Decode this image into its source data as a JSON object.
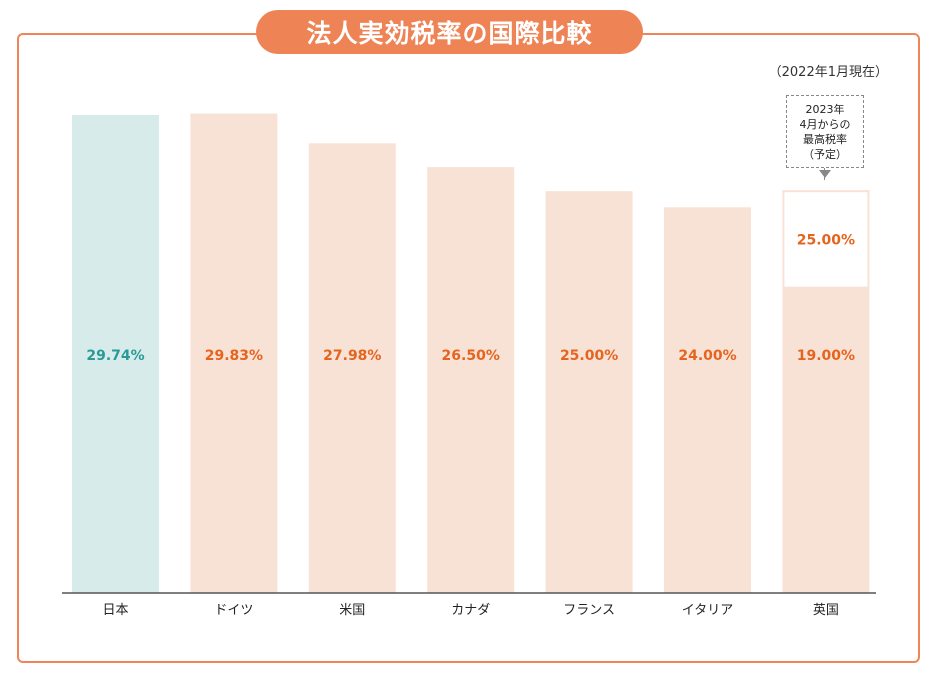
{
  "title": "法人実効税率の国際比較",
  "as_of": "（2022年1月現在）",
  "colors": {
    "accent": "#ee8456",
    "frame": "#f0855a",
    "japan_bar": "#d7ecea",
    "other_bar": "#f8e2d6",
    "japan_label": "#2a9a98",
    "other_label": "#e5641e",
    "axis": "#555555"
  },
  "note": {
    "lines": [
      "2023年",
      "4月からの",
      "最高税率",
      "（予定）"
    ]
  },
  "chart_data": {
    "type": "bar",
    "title": "法人実効税率の国際比較",
    "categories": [
      "日本",
      "ドイツ",
      "米国",
      "カナダ",
      "フランス",
      "イタリア",
      "英国"
    ],
    "values": [
      29.74,
      29.83,
      27.98,
      26.5,
      25.0,
      24.0,
      19.0
    ],
    "value_labels": [
      "29.74%",
      "29.83%",
      "27.98%",
      "26.50%",
      "25.00%",
      "24.00%",
      "19.00%"
    ],
    "extra_segment": {
      "category": "英国",
      "value": 25.0,
      "label": "25.00%"
    },
    "ylim": [
      0,
      30.85
    ],
    "grid": false,
    "legend": "none"
  }
}
